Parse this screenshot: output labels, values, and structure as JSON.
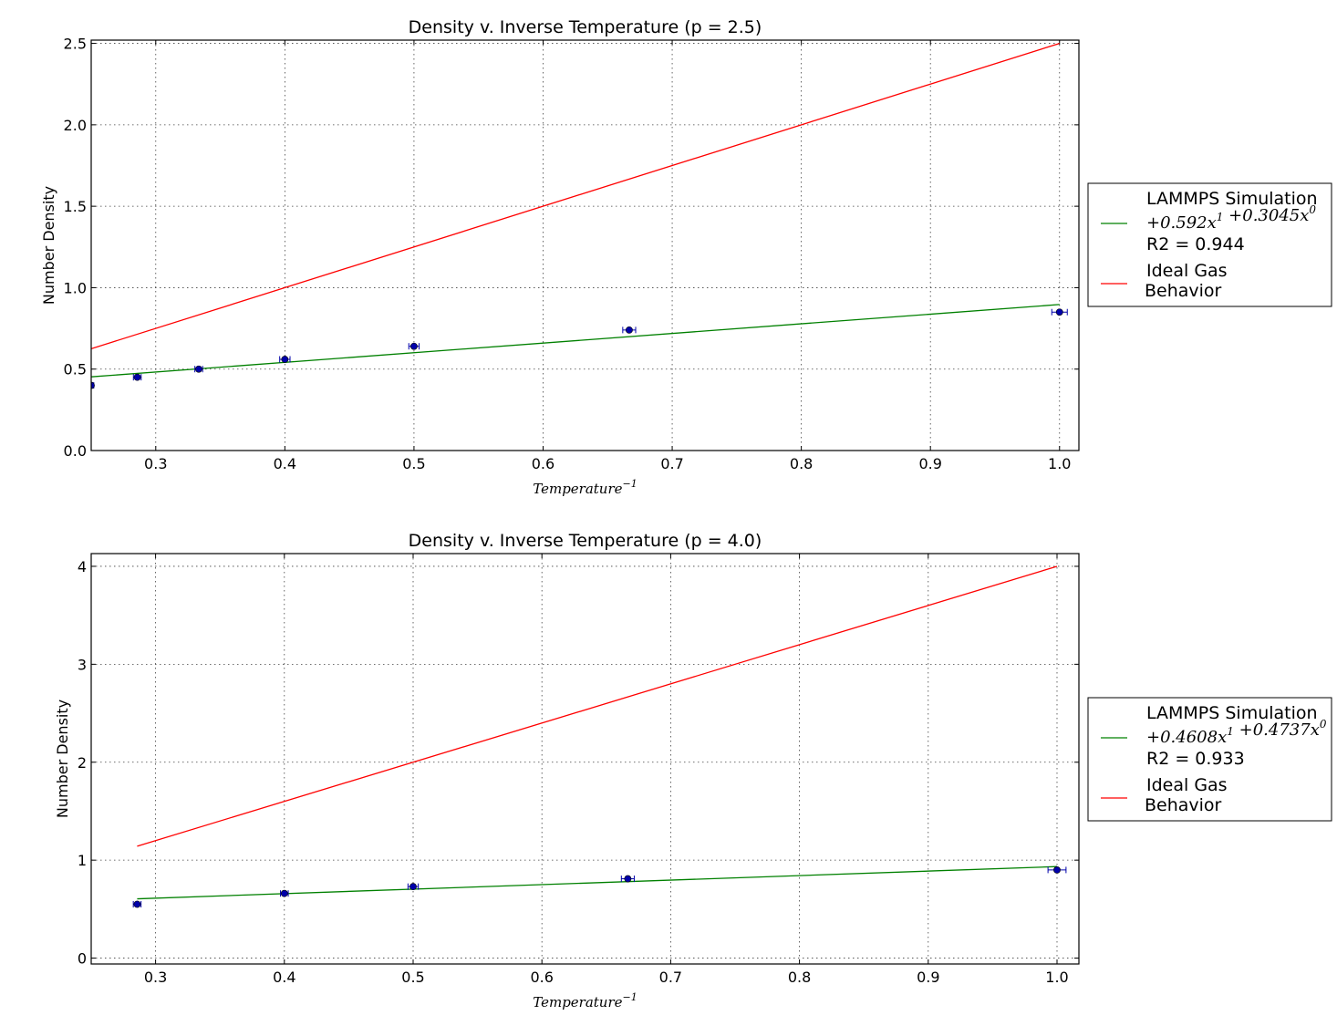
{
  "chart_data": [
    {
      "type": "scatter",
      "title": "Density v. Inverse Temperature (p = 2.5)",
      "xlabel": "Temperature",
      "xlabel_superscript": "−1",
      "ylabel": "Number Density",
      "xlim": [
        0.25,
        1.015
      ],
      "ylim": [
        0,
        2.52
      ],
      "xticks": [
        "0.3",
        "0.4",
        "0.5",
        "0.6",
        "0.7",
        "0.8",
        "0.9",
        "1.0"
      ],
      "yticks": [
        "0.0",
        "0.5",
        "1.0",
        "1.5",
        "2.0",
        "2.5"
      ],
      "grid": true,
      "legend_position": "outside-right",
      "points": {
        "name": "LAMMPS Simulation",
        "color": "#0000aa",
        "x": [
          0.25,
          0.2857,
          0.3333,
          0.4,
          0.5,
          0.6667,
          1.0
        ],
        "y": [
          0.4,
          0.45,
          0.5,
          0.56,
          0.64,
          0.74,
          0.85
        ],
        "xerr": [
          0.002,
          0.003,
          0.003,
          0.004,
          0.004,
          0.005,
          0.006
        ]
      },
      "fit": {
        "label_terms": [
          "+0.592",
          "+0.3045"
        ],
        "r2_label": "R2 = 0.944",
        "color": "#008000",
        "slope": 0.592,
        "intercept": 0.3045,
        "x_range": [
          0.25,
          1.0
        ]
      },
      "ideal": {
        "label_lines": [
          "Ideal Gas",
          "Behavior"
        ],
        "color": "#ff0000",
        "slope": 2.5,
        "intercept": 0,
        "x_range": [
          0.25,
          1.0
        ]
      }
    },
    {
      "type": "scatter",
      "title": "Density v. Inverse Temperature (p = 4.0)",
      "xlabel": "Temperature",
      "xlabel_superscript": "−1",
      "ylabel": "Number Density",
      "xlim": [
        0.25,
        1.017
      ],
      "ylim": [
        -0.06,
        4.13
      ],
      "xticks": [
        "0.3",
        "0.4",
        "0.5",
        "0.6",
        "0.7",
        "0.8",
        "0.9",
        "1.0"
      ],
      "yticks": [
        "0",
        "1",
        "2",
        "3",
        "4"
      ],
      "grid": true,
      "legend_position": "outside-right",
      "points": {
        "name": "LAMMPS Simulation",
        "color": "#0000aa",
        "x": [
          0.2857,
          0.4,
          0.5,
          0.6667,
          1.0
        ],
        "y": [
          0.55,
          0.66,
          0.73,
          0.81,
          0.9
        ],
        "xerr": [
          0.003,
          0.003,
          0.004,
          0.005,
          0.007
        ]
      },
      "fit": {
        "label_terms": [
          "+0.4608",
          "+0.4737"
        ],
        "r2_label": "R2 = 0.933",
        "color": "#008000",
        "slope": 0.4608,
        "intercept": 0.4737,
        "x_range": [
          0.2857,
          1.0
        ]
      },
      "ideal": {
        "label_lines": [
          "Ideal Gas",
          "Behavior"
        ],
        "color": "#ff0000",
        "slope": 4.0,
        "intercept": 0,
        "x_range": [
          0.2857,
          1.0
        ]
      }
    }
  ]
}
